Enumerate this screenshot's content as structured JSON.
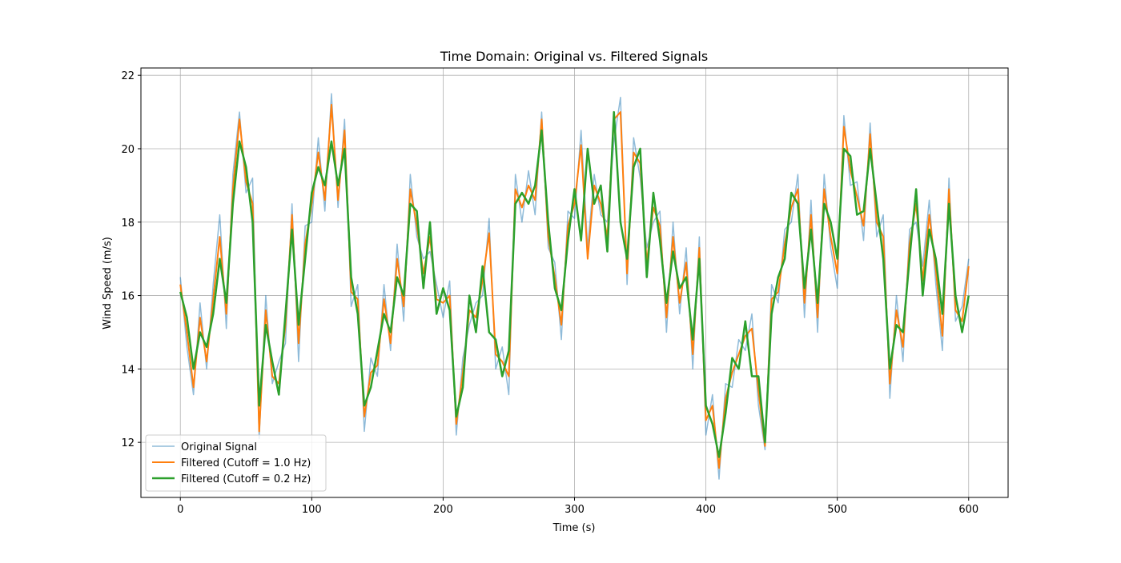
{
  "chart_data": {
    "type": "line",
    "title": "Time Domain: Original vs. Filtered Signals",
    "x_label": "Time (s)",
    "y_label": "Wind Speed (m/s)",
    "x": [
      0,
      5,
      10,
      15,
      20,
      25,
      30,
      35,
      40,
      45,
      50,
      55,
      60,
      65,
      70,
      75,
      80,
      85,
      90,
      95,
      100,
      105,
      110,
      115,
      120,
      125,
      130,
      135,
      140,
      145,
      150,
      155,
      160,
      165,
      170,
      175,
      180,
      185,
      190,
      195,
      200,
      205,
      210,
      215,
      220,
      225,
      230,
      235,
      240,
      245,
      250,
      255,
      260,
      265,
      270,
      275,
      280,
      285,
      290,
      295,
      300,
      305,
      310,
      315,
      320,
      325,
      330,
      335,
      340,
      345,
      350,
      355,
      360,
      365,
      370,
      375,
      380,
      385,
      390,
      395,
      400,
      405,
      410,
      415,
      420,
      425,
      430,
      435,
      440,
      445,
      450,
      455,
      460,
      465,
      470,
      475,
      480,
      485,
      490,
      495,
      500,
      505,
      510,
      515,
      520,
      525,
      530,
      535,
      540,
      545,
      550,
      555,
      560,
      565,
      570,
      575,
      580,
      585,
      590,
      595,
      600
    ],
    "series": [
      {
        "name": "Original Signal",
        "color": "#1f77b4",
        "opacity": 0.5,
        "width": 1.5,
        "values": [
          16.5,
          14.6,
          13.3,
          15.8,
          14.0,
          16.3,
          18.2,
          15.1,
          19.3,
          21.0,
          18.8,
          19.2,
          12.1,
          16.0,
          13.6,
          14.2,
          14.7,
          18.5,
          14.2,
          17.9,
          18.0,
          20.3,
          18.3,
          21.5,
          18.4,
          20.8,
          15.7,
          16.3,
          12.3,
          14.3,
          13.8,
          16.3,
          14.5,
          17.4,
          15.3,
          19.3,
          17.6,
          17.0,
          17.2,
          16.3,
          15.4,
          16.4,
          12.2,
          14.3,
          15.2,
          15.8,
          16.0,
          18.1,
          14.0,
          14.6,
          13.3,
          19.3,
          18.0,
          19.4,
          18.2,
          21.0,
          17.3,
          16.9,
          14.8,
          18.3,
          18.1,
          20.5,
          17.3,
          19.3,
          18.2,
          18.0,
          20.2,
          21.4,
          16.3,
          20.3,
          19.2,
          17.3,
          18.0,
          18.3,
          15.0,
          18.0,
          15.5,
          17.3,
          14.0,
          17.6,
          12.2,
          13.3,
          11.0,
          13.6,
          13.5,
          14.8,
          14.5,
          15.5,
          13.0,
          11.8,
          16.3,
          15.8,
          17.8,
          18.0,
          19.3,
          15.4,
          18.6,
          15.0,
          19.3,
          17.3,
          16.2,
          20.9,
          19.0,
          19.1,
          17.5,
          20.7,
          17.6,
          18.2,
          13.2,
          16.0,
          14.2,
          17.8,
          18.0,
          16.8,
          18.6,
          16.3,
          14.5,
          19.2,
          15.3,
          15.7,
          17.0
        ]
      },
      {
        "name": "Filtered (Cutoff = 1.0 Hz)",
        "color": "#ff7f0e",
        "opacity": 1,
        "width": 2,
        "values": [
          16.3,
          15.0,
          13.5,
          15.4,
          14.2,
          15.9,
          17.6,
          15.5,
          18.9,
          20.8,
          19.1,
          18.5,
          12.3,
          15.6,
          13.8,
          13.6,
          15.2,
          18.2,
          14.7,
          17.4,
          18.5,
          19.9,
          18.6,
          21.2,
          18.6,
          20.5,
          16.1,
          15.9,
          12.7,
          13.9,
          14.1,
          15.9,
          14.7,
          17.0,
          15.7,
          18.9,
          17.9,
          16.6,
          17.6,
          15.9,
          15.8,
          16.0,
          12.5,
          13.9,
          15.6,
          15.4,
          16.4,
          17.7,
          14.4,
          14.2,
          13.8,
          18.9,
          18.4,
          19.0,
          18.6,
          20.8,
          17.6,
          16.5,
          15.2,
          17.9,
          18.5,
          20.1,
          17.0,
          19.0,
          18.5,
          17.6,
          20.8,
          21.0,
          16.6,
          19.9,
          19.6,
          16.9,
          18.4,
          17.9,
          15.4,
          17.6,
          15.8,
          16.9,
          14.4,
          17.3,
          12.6,
          13.0,
          11.3,
          13.2,
          13.9,
          14.4,
          14.9,
          15.1,
          13.4,
          11.9,
          15.9,
          16.1,
          17.4,
          18.4,
          18.9,
          15.8,
          18.2,
          15.4,
          18.9,
          17.6,
          16.6,
          20.6,
          19.4,
          18.7,
          17.9,
          20.4,
          18.0,
          17.6,
          13.6,
          15.6,
          14.6,
          17.4,
          18.5,
          16.4,
          18.2,
          16.7,
          14.9,
          18.9,
          15.6,
          15.3,
          16.8
        ]
      },
      {
        "name": "Filtered (Cutoff = 0.2 Hz)",
        "color": "#2ca02c",
        "opacity": 1,
        "width": 2.5,
        "values": [
          16.1,
          15.4,
          14.0,
          15.0,
          14.6,
          15.5,
          17.0,
          15.8,
          18.5,
          20.2,
          19.5,
          18.0,
          13.0,
          15.2,
          14.2,
          13.3,
          15.5,
          17.8,
          15.2,
          17.0,
          18.8,
          19.5,
          19.0,
          20.2,
          19.0,
          20.0,
          16.5,
          15.5,
          13.0,
          13.5,
          14.5,
          15.5,
          15.0,
          16.5,
          16.0,
          18.5,
          18.3,
          16.2,
          18.0,
          15.5,
          16.2,
          15.6,
          12.7,
          13.5,
          16.0,
          15.0,
          16.8,
          15.0,
          14.8,
          13.8,
          14.5,
          18.5,
          18.8,
          18.5,
          19.0,
          20.5,
          18.0,
          16.2,
          15.6,
          17.5,
          18.9,
          17.5,
          20.0,
          18.5,
          19.0,
          17.2,
          21.0,
          18.0,
          17.0,
          19.5,
          20.0,
          16.5,
          18.8,
          17.5,
          15.8,
          17.2,
          16.2,
          16.5,
          14.8,
          17.0,
          13.0,
          12.5,
          11.6,
          12.8,
          14.3,
          14.0,
          15.3,
          13.8,
          13.8,
          12.0,
          15.5,
          16.5,
          17.0,
          18.8,
          18.5,
          16.2,
          17.8,
          15.8,
          18.5,
          18.0,
          17.0,
          20.0,
          19.8,
          18.2,
          18.3,
          20.0,
          18.5,
          17.0,
          14.0,
          15.2,
          15.0,
          17.0,
          18.9,
          16.0,
          17.8,
          17.0,
          15.5,
          18.5,
          16.0,
          15.0,
          16.0
        ]
      }
    ],
    "xlim": [
      -30,
      630
    ],
    "ylim": [
      10.5,
      22.2
    ],
    "xticks": [
      0,
      100,
      200,
      300,
      400,
      500,
      600
    ],
    "yticks": [
      12,
      14,
      16,
      18,
      20,
      22
    ],
    "grid": true,
    "legend": "lower left"
  }
}
